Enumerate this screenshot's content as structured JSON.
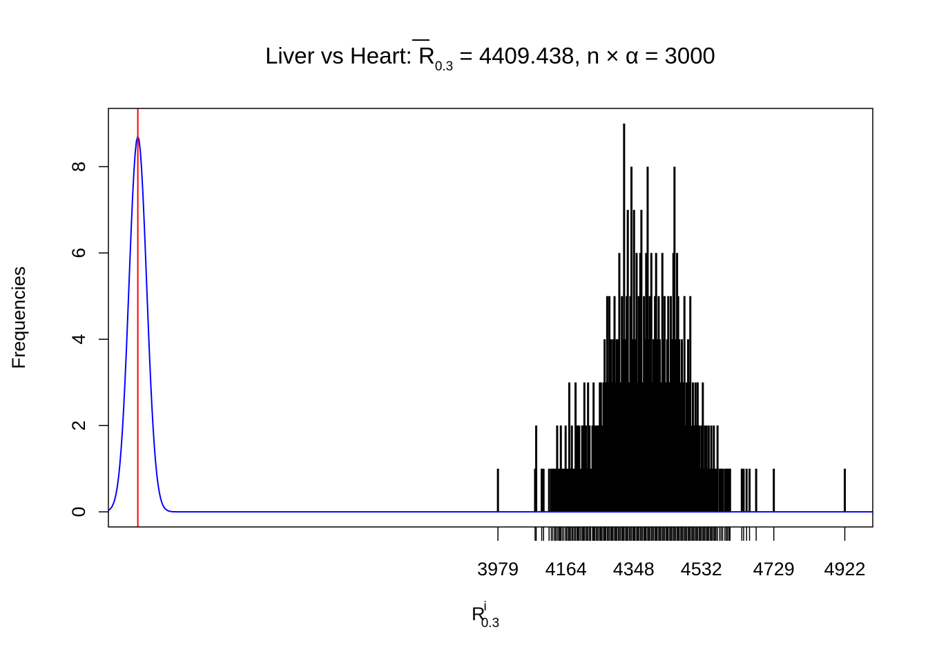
{
  "chart_data": {
    "type": "bar",
    "title": {
      "prefix": "Liver vs Heart: ",
      "stat_symbol": "R",
      "stat_subscript": "0.3",
      "stat_value": "= 4409.438, n",
      "times": "×",
      "alpha": "α",
      "n_alpha_value": "= 3000"
    },
    "xlabel": {
      "symbol": "R",
      "superscript": "i",
      "subscript": "0.3"
    },
    "ylabel": "Frequencies",
    "x_tick_labels": [
      "3979",
      "4164",
      "4348",
      "4532",
      "4729",
      "4922"
    ],
    "y_ticks": [
      0,
      2,
      4,
      6,
      8
    ],
    "ylim": [
      -0.35,
      9.35
    ],
    "xlim": [
      2920,
      4998
    ],
    "frequencies": [
      [
        3979,
        1
      ],
      [
        4080,
        1
      ],
      [
        4083,
        2
      ],
      [
        4098,
        1
      ],
      [
        4103,
        1
      ],
      [
        4118,
        1
      ],
      [
        4124,
        1
      ],
      [
        4128,
        1
      ],
      [
        4133,
        1
      ],
      [
        4136,
        1
      ],
      [
        4140,
        2
      ],
      [
        4144,
        1
      ],
      [
        4147,
        1
      ],
      [
        4150,
        2
      ],
      [
        4154,
        1
      ],
      [
        4158,
        1
      ],
      [
        4163,
        2
      ],
      [
        4166,
        1
      ],
      [
        4170,
        1
      ],
      [
        4173,
        3
      ],
      [
        4176,
        1
      ],
      [
        4180,
        2
      ],
      [
        4183,
        1
      ],
      [
        4187,
        1
      ],
      [
        4190,
        3
      ],
      [
        4194,
        2
      ],
      [
        4197,
        2
      ],
      [
        4200,
        2
      ],
      [
        4204,
        1
      ],
      [
        4208,
        2
      ],
      [
        4211,
        2
      ],
      [
        4214,
        3
      ],
      [
        4218,
        2
      ],
      [
        4221,
        1
      ],
      [
        4224,
        3
      ],
      [
        4228,
        2
      ],
      [
        4231,
        1
      ],
      [
        4236,
        2
      ],
      [
        4239,
        3
      ],
      [
        4242,
        2
      ],
      [
        4246,
        2
      ],
      [
        4249,
        2
      ],
      [
        4252,
        2
      ],
      [
        4256,
        3
      ],
      [
        4259,
        3
      ],
      [
        4262,
        2
      ],
      [
        4266,
        3
      ],
      [
        4269,
        4
      ],
      [
        4272,
        3
      ],
      [
        4276,
        5
      ],
      [
        4279,
        3
      ],
      [
        4282,
        5
      ],
      [
        4286,
        4
      ],
      [
        4289,
        3
      ],
      [
        4292,
        4
      ],
      [
        4296,
        5
      ],
      [
        4299,
        3
      ],
      [
        4302,
        4
      ],
      [
        4306,
        4
      ],
      [
        4309,
        6
      ],
      [
        4312,
        3
      ],
      [
        4316,
        5
      ],
      [
        4319,
        4
      ],
      [
        4322,
        9
      ],
      [
        4326,
        4
      ],
      [
        4329,
        5
      ],
      [
        4332,
        7
      ],
      [
        4336,
        3
      ],
      [
        4339,
        5
      ],
      [
        4342,
        8
      ],
      [
        4346,
        4
      ],
      [
        4349,
        7
      ],
      [
        4352,
        4
      ],
      [
        4356,
        6
      ],
      [
        4359,
        3
      ],
      [
        4362,
        5
      ],
      [
        4366,
        6
      ],
      [
        4369,
        7
      ],
      [
        4372,
        3
      ],
      [
        4376,
        5
      ],
      [
        4379,
        4
      ],
      [
        4382,
        6
      ],
      [
        4386,
        8
      ],
      [
        4389,
        4
      ],
      [
        4392,
        5
      ],
      [
        4396,
        6
      ],
      [
        4399,
        3
      ],
      [
        4402,
        4
      ],
      [
        4406,
        5
      ],
      [
        4409,
        6
      ],
      [
        4412,
        4
      ],
      [
        4416,
        5
      ],
      [
        4419,
        4
      ],
      [
        4422,
        3
      ],
      [
        4426,
        6
      ],
      [
        4429,
        4
      ],
      [
        4432,
        5
      ],
      [
        4436,
        3
      ],
      [
        4439,
        4
      ],
      [
        4442,
        5
      ],
      [
        4446,
        3
      ],
      [
        4449,
        5
      ],
      [
        4452,
        4
      ],
      [
        4456,
        6
      ],
      [
        4459,
        8
      ],
      [
        4462,
        4
      ],
      [
        4466,
        6
      ],
      [
        4469,
        5
      ],
      [
        4472,
        4
      ],
      [
        4476,
        3
      ],
      [
        4479,
        4
      ],
      [
        4482,
        3
      ],
      [
        4486,
        5
      ],
      [
        4489,
        2
      ],
      [
        4492,
        3
      ],
      [
        4496,
        4
      ],
      [
        4499,
        3
      ],
      [
        4502,
        5
      ],
      [
        4506,
        2
      ],
      [
        4509,
        3
      ],
      [
        4512,
        2
      ],
      [
        4516,
        3
      ],
      [
        4519,
        2
      ],
      [
        4522,
        3
      ],
      [
        4526,
        2
      ],
      [
        4529,
        1
      ],
      [
        4532,
        2
      ],
      [
        4536,
        3
      ],
      [
        4539,
        1
      ],
      [
        4542,
        2
      ],
      [
        4546,
        2
      ],
      [
        4549,
        1
      ],
      [
        4552,
        2
      ],
      [
        4556,
        1
      ],
      [
        4559,
        2
      ],
      [
        4562,
        1
      ],
      [
        4566,
        2
      ],
      [
        4569,
        1
      ],
      [
        4572,
        1
      ],
      [
        4576,
        2
      ],
      [
        4582,
        1
      ],
      [
        4586,
        1
      ],
      [
        4590,
        1
      ],
      [
        4596,
        1
      ],
      [
        4600,
        1
      ],
      [
        4603,
        1
      ],
      [
        4607,
        1
      ],
      [
        4610,
        1
      ],
      [
        4642,
        1
      ],
      [
        4647,
        1
      ],
      [
        4655,
        1
      ],
      [
        4663,
        1
      ],
      [
        4681,
        1
      ],
      [
        4729,
        1
      ],
      [
        4922,
        1
      ]
    ],
    "rug_x": [
      3979,
      4080,
      4083,
      4098,
      4103,
      4118,
      4124,
      4128,
      4133,
      4136,
      4140,
      4144,
      4147,
      4150,
      4154,
      4158,
      4163,
      4166,
      4170,
      4173,
      4176,
      4180,
      4183,
      4187,
      4190,
      4194,
      4197,
      4200,
      4204,
      4208,
      4211,
      4214,
      4218,
      4221,
      4224,
      4228,
      4231,
      4236,
      4239,
      4242,
      4246,
      4249,
      4252,
      4256,
      4259,
      4262,
      4266,
      4269,
      4272,
      4276,
      4279,
      4282,
      4286,
      4289,
      4292,
      4296,
      4299,
      4302,
      4306,
      4309,
      4312,
      4316,
      4319,
      4322,
      4326,
      4329,
      4332,
      4336,
      4339,
      4342,
      4346,
      4349,
      4352,
      4356,
      4359,
      4362,
      4366,
      4369,
      4372,
      4376,
      4379,
      4382,
      4386,
      4389,
      4392,
      4396,
      4399,
      4402,
      4406,
      4409,
      4412,
      4416,
      4419,
      4422,
      4426,
      4429,
      4432,
      4436,
      4439,
      4442,
      4446,
      4449,
      4452,
      4456,
      4459,
      4462,
      4466,
      4469,
      4472,
      4476,
      4479,
      4482,
      4486,
      4489,
      4492,
      4496,
      4499,
      4502,
      4506,
      4509,
      4512,
      4516,
      4519,
      4522,
      4526,
      4529,
      4532,
      4536,
      4539,
      4542,
      4546,
      4549,
      4552,
      4556,
      4559,
      4562,
      4566,
      4569,
      4572,
      4576,
      4582,
      4586,
      4590,
      4596,
      4600,
      4603,
      4607,
      4610,
      4642,
      4647,
      4655,
      4663,
      4681,
      4729,
      4922
    ],
    "reference_line": {
      "x": 3000,
      "color": "#ff0000"
    },
    "density_curve": {
      "mean": 3000,
      "sd": 24,
      "peak": 8.7,
      "color": "#0000ff"
    },
    "bar_color": "#000000",
    "grid": false,
    "legend": "none"
  }
}
